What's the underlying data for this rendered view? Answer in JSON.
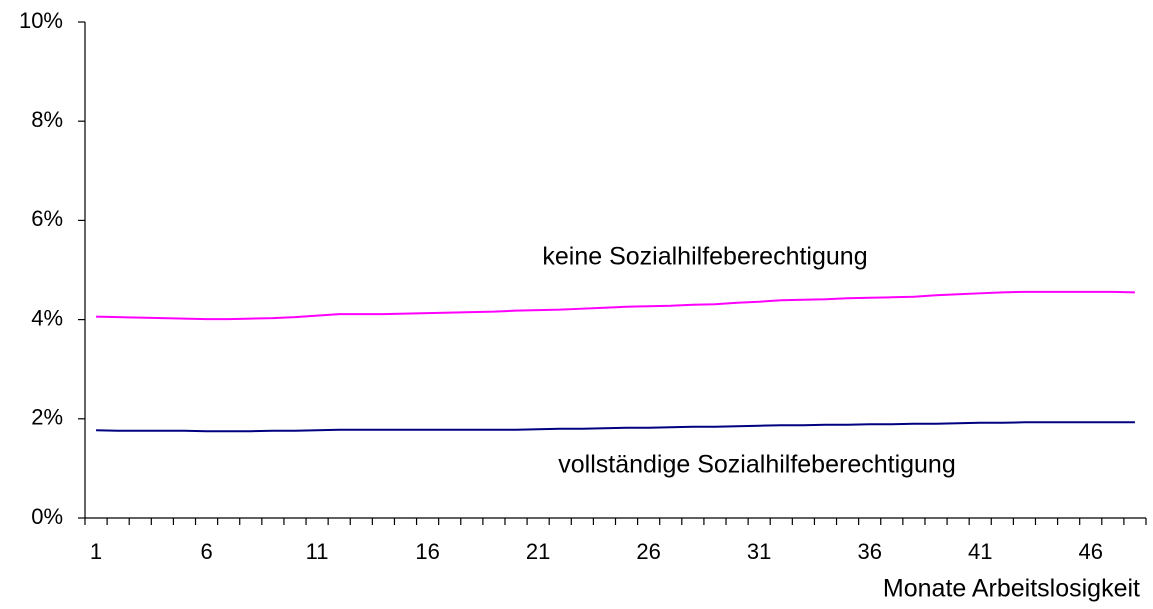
{
  "chart_data": {
    "type": "line",
    "x": [
      1,
      2,
      3,
      4,
      5,
      6,
      7,
      8,
      9,
      10,
      11,
      12,
      13,
      14,
      15,
      16,
      17,
      18,
      19,
      20,
      21,
      22,
      23,
      24,
      25,
      26,
      27,
      28,
      29,
      30,
      31,
      32,
      33,
      34,
      35,
      36,
      37,
      38,
      39,
      40,
      41,
      42,
      43,
      44,
      45,
      46,
      47,
      48
    ],
    "series": [
      {
        "name": "keine Sozialhilfeberechtigung",
        "color": "#ff00ff",
        "values": [
          4.06,
          4.05,
          4.04,
          4.03,
          4.02,
          4.01,
          4.01,
          4.02,
          4.03,
          4.05,
          4.08,
          4.11,
          4.11,
          4.11,
          4.12,
          4.13,
          4.14,
          4.15,
          4.16,
          4.18,
          4.19,
          4.2,
          4.22,
          4.24,
          4.26,
          4.27,
          4.28,
          4.3,
          4.31,
          4.34,
          4.36,
          4.39,
          4.4,
          4.41,
          4.43,
          4.44,
          4.45,
          4.46,
          4.49,
          4.51,
          4.53,
          4.55,
          4.56,
          4.56,
          4.56,
          4.56,
          4.56,
          4.55
        ]
      },
      {
        "name": "vollständige Sozialhilfeberechtigung",
        "color": "#000080",
        "values": [
          1.77,
          1.76,
          1.76,
          1.76,
          1.76,
          1.75,
          1.75,
          1.75,
          1.76,
          1.76,
          1.77,
          1.78,
          1.78,
          1.78,
          1.78,
          1.78,
          1.78,
          1.78,
          1.78,
          1.78,
          1.79,
          1.8,
          1.8,
          1.81,
          1.82,
          1.82,
          1.83,
          1.84,
          1.84,
          1.85,
          1.86,
          1.87,
          1.87,
          1.88,
          1.88,
          1.89,
          1.89,
          1.9,
          1.9,
          1.91,
          1.92,
          1.92,
          1.93,
          1.93,
          1.93,
          1.93,
          1.93,
          1.93
        ]
      }
    ],
    "x_label": "Monate Arbeitslosigkeit",
    "xlim": [
      0.5,
      48.5
    ],
    "xticks": [
      1,
      6,
      11,
      16,
      21,
      26,
      31,
      36,
      41,
      46
    ],
    "ylim": [
      0,
      10
    ],
    "yticks": [
      {
        "value": 0,
        "label": "0%"
      },
      {
        "value": 2,
        "label": "2%"
      },
      {
        "value": 4,
        "label": "4%"
      },
      {
        "value": 6,
        "label": "6%"
      },
      {
        "value": 8,
        "label": "8%"
      },
      {
        "value": 10,
        "label": "10%"
      }
    ],
    "grid": false
  }
}
